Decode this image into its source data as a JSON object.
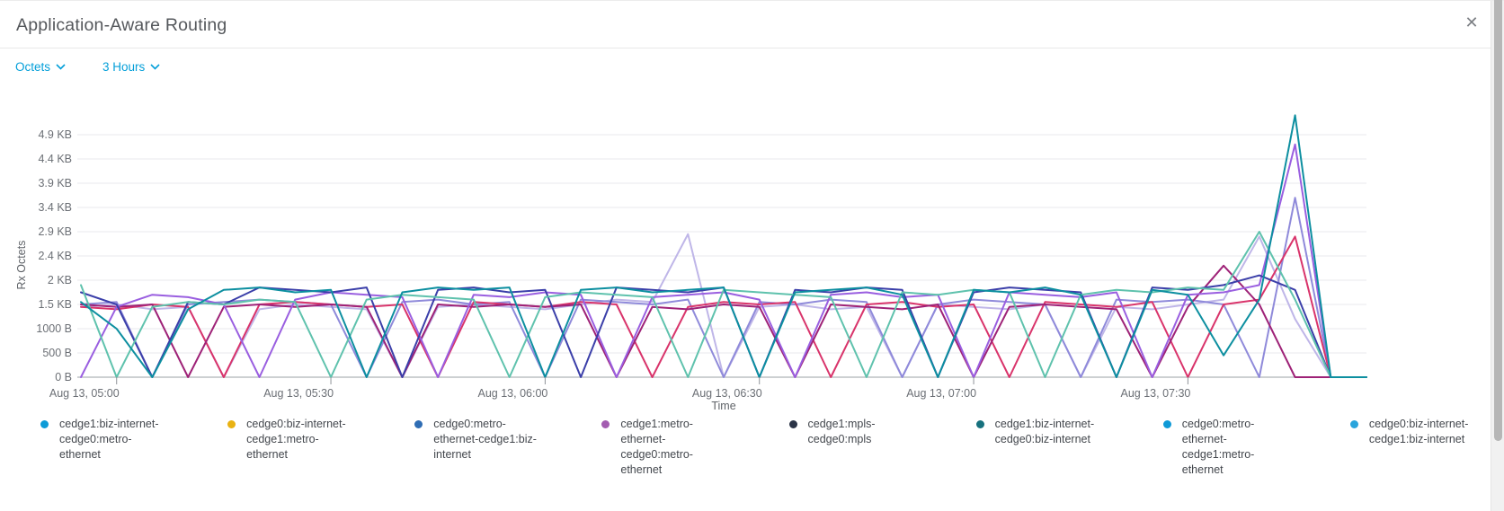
{
  "window": {
    "title": "Application-Aware Routing"
  },
  "icons": {
    "close": "✕"
  },
  "filters": {
    "metric_label": "Octets",
    "time_range_label": "3 Hours"
  },
  "scroll": {
    "has_vertical_scrollbar": true
  },
  "chart_data": {
    "type": "line",
    "title": "",
    "xlabel": "Time",
    "ylabel": "Rx Octets",
    "unit": "bytes",
    "grid": true,
    "legend_position": "bottom",
    "ylim": [
      0,
      5500
    ],
    "y_tick_values": [
      0,
      500,
      1000,
      1500,
      2000,
      2500,
      3000,
      3500,
      4000,
      4500,
      5000
    ],
    "y_tick_labels": [
      "0 B",
      "500 B",
      "1000 B",
      "1.5 KB",
      "2 KB",
      "2.4 KB",
      "2.9 KB",
      "3.4 KB",
      "3.9 KB",
      "4.4 KB",
      "4.9 KB"
    ],
    "x_tick_indices": [
      1,
      7,
      13,
      19,
      25,
      31
    ],
    "x_tick_labels": [
      "Aug 13, 05:00",
      "Aug 13, 05:30",
      "Aug 13, 06:00",
      "Aug 13, 06:30",
      "Aug 13, 07:00",
      "Aug 13, 07:30"
    ],
    "n_points": 37,
    "series": [
      {
        "name": "cedge1:biz-internet-cedge0:metro-ethernet",
        "legend_color": "#0d9bd7",
        "line_color": "#0d8fa0",
        "values": [
          1550,
          1000,
          0,
          1400,
          1800,
          1850,
          1750,
          1800,
          0,
          1750,
          1850,
          1800,
          1850,
          0,
          1800,
          1850,
          1750,
          1800,
          1850,
          0,
          1750,
          1800,
          1850,
          1700,
          0,
          1800,
          1750,
          1850,
          1700,
          0,
          1800,
          1700,
          450,
          1600,
          5400,
          0,
          0
        ]
      },
      {
        "name": "cedge0:biz-internet-cedge1:metro-ethernet",
        "legend_color": "#e9b213",
        "line_color": "#5fc2ad",
        "values": [
          1900,
          0,
          1450,
          1550,
          1500,
          1600,
          1550,
          0,
          1600,
          1700,
          1650,
          1600,
          0,
          1650,
          1750,
          1700,
          1650,
          0,
          1800,
          1750,
          1700,
          1650,
          0,
          1750,
          1700,
          1800,
          1750,
          0,
          1700,
          1800,
          1750,
          1850,
          1800,
          3000,
          1600,
          0,
          0
        ]
      },
      {
        "name": "cedge0:metro-ethernet-cedge1:biz-internet",
        "legend_color": "#2f6db4",
        "line_color": "#3b3fa9",
        "values": [
          1750,
          1500,
          0,
          1550,
          1500,
          1850,
          1800,
          1750,
          1850,
          0,
          1800,
          1850,
          1750,
          1800,
          0,
          1850,
          1800,
          1750,
          1850,
          0,
          1800,
          1750,
          1850,
          1800,
          0,
          1750,
          1850,
          1800,
          1750,
          0,
          1850,
          1800,
          1900,
          2100,
          1800,
          0,
          0
        ]
      },
      {
        "name": "cedge1:metro-ethernet-cedge0:metro-ethernet",
        "legend_color": "#a35cb0",
        "line_color": "#9a5fe0",
        "values": [
          0,
          1450,
          1700,
          1650,
          1500,
          0,
          1600,
          1750,
          1700,
          1650,
          0,
          1700,
          1650,
          1750,
          1700,
          0,
          1650,
          1700,
          1750,
          1600,
          0,
          1700,
          1750,
          1650,
          1700,
          0,
          1750,
          1700,
          1650,
          1750,
          0,
          1700,
          1750,
          1900,
          4800,
          0,
          0
        ]
      },
      {
        "name": "cedge1:mpls-cedge0:mpls",
        "legend_color": "#2b3447",
        "line_color": "#9e2277",
        "values": [
          1500,
          1450,
          1500,
          0,
          1450,
          1500,
          1450,
          1500,
          1450,
          0,
          1500,
          1450,
          1500,
          1450,
          1500,
          0,
          1450,
          1400,
          1500,
          1450,
          0,
          1500,
          1450,
          1400,
          1500,
          0,
          1450,
          1500,
          1450,
          1400,
          0,
          1450,
          2300,
          1500,
          0,
          0,
          0
        ]
      },
      {
        "name": "cedge1:biz-internet-cedge0:biz-internet",
        "legend_color": "#17717e",
        "line_color": "#d9346b",
        "values": [
          1450,
          1400,
          1500,
          1450,
          0,
          1500,
          1550,
          1500,
          1450,
          1500,
          0,
          1550,
          1500,
          1450,
          1550,
          1500,
          0,
          1450,
          1550,
          1500,
          1550,
          0,
          1500,
          1550,
          1450,
          1500,
          0,
          1550,
          1500,
          1450,
          1550,
          0,
          1500,
          1600,
          2900,
          0,
          0
        ]
      },
      {
        "name": "cedge0:metro-ethernet-cedge1:metro-ethernet",
        "legend_color": "#0f9ad7",
        "line_color": "#8f8ada",
        "values": [
          1500,
          1550,
          0,
          1500,
          1550,
          1600,
          1550,
          1500,
          0,
          1550,
          1600,
          1500,
          1550,
          0,
          1600,
          1550,
          1500,
          1600,
          0,
          1550,
          1500,
          1600,
          1550,
          0,
          1500,
          1600,
          1550,
          1500,
          0,
          1600,
          1550,
          1600,
          1500,
          0,
          3700,
          0,
          0
        ]
      },
      {
        "name": "cedge0:biz-internet-cedge1:biz-internet",
        "legend_color": "#29a4dc",
        "line_color": "#bfb6e8",
        "values": [
          1450,
          1500,
          1400,
          1450,
          0,
          1400,
          1500,
          1450,
          1400,
          0,
          1450,
          1500,
          1450,
          1400,
          1500,
          1600,
          1550,
          2950,
          0,
          1450,
          1500,
          1400,
          1450,
          0,
          1500,
          1450,
          1400,
          1500,
          0,
          1450,
          1400,
          1500,
          1600,
          2900,
          1200,
          0,
          0
        ]
      }
    ]
  }
}
